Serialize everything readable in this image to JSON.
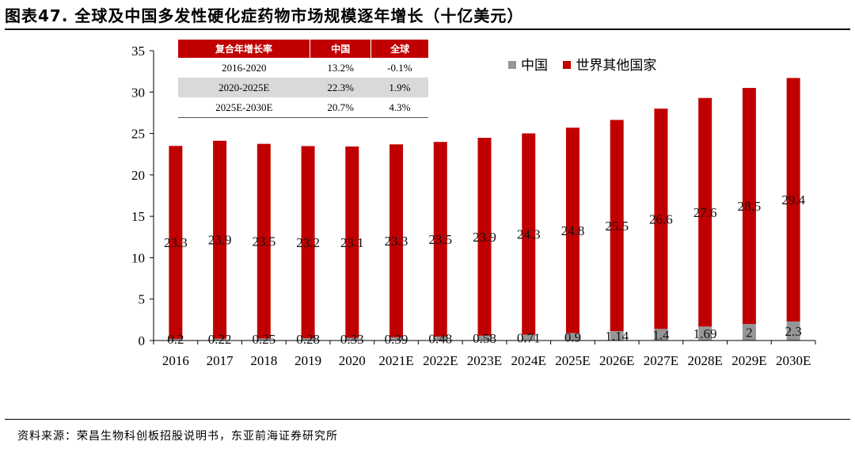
{
  "figure_title": "图表47. 全球及中国多发性硬化症药物市场规模逐年增长（十亿美元）",
  "source": "资料来源：荣昌生物科创板招股说明书，东亚前海证券研究所",
  "colors": {
    "china": "#969696",
    "rest_of_world": "#c00000",
    "table_header": "#c00000"
  },
  "cagr_table": {
    "headers": [
      "复合年增长率",
      "中国",
      "全球"
    ],
    "rows": [
      {
        "period": "2016-2020",
        "china": "13.2%",
        "global": "-0.1%"
      },
      {
        "period": "2020-2025E",
        "china": "22.3%",
        "global": "1.9%"
      },
      {
        "period": "2025E-2030E",
        "china": "20.7%",
        "global": "4.3%"
      }
    ]
  },
  "chart_data": {
    "type": "bar",
    "stacked": true,
    "categories": [
      "2016",
      "2017",
      "2018",
      "2019",
      "2020",
      "2021E",
      "2022E",
      "2023E",
      "2024E",
      "2025E",
      "2026E",
      "2027E",
      "2028E",
      "2029E",
      "2030E"
    ],
    "series": [
      {
        "name": "中国",
        "values": [
          0.2,
          0.22,
          0.25,
          0.28,
          0.33,
          0.39,
          0.48,
          0.58,
          0.71,
          0.9,
          1.14,
          1.4,
          1.69,
          2,
          2.3
        ],
        "labels": [
          "0.2",
          "0.22",
          "0.25",
          "0.28",
          "0.33",
          "0.39",
          "0.48",
          "0.58",
          "0.71",
          "0.9",
          "1.14",
          "1.4",
          "1.69",
          "2",
          "2.3"
        ]
      },
      {
        "name": "世界其他国家",
        "values": [
          23.3,
          23.9,
          23.5,
          23.2,
          23.1,
          23.3,
          23.5,
          23.9,
          24.3,
          24.8,
          25.5,
          26.6,
          27.6,
          28.5,
          29.4
        ],
        "labels": [
          "23.3",
          "23.9",
          "23.5",
          "23.2",
          "23.1",
          "23.3",
          "23.5",
          "23.9",
          "24.3",
          "24.8",
          "25.5",
          "26.6",
          "27.6",
          "28.5",
          "29.4"
        ]
      }
    ],
    "ylim": [
      0,
      35
    ],
    "yticks": [
      0,
      5,
      10,
      15,
      20,
      25,
      30,
      35
    ],
    "legend_position": "top-right",
    "grid": false
  }
}
